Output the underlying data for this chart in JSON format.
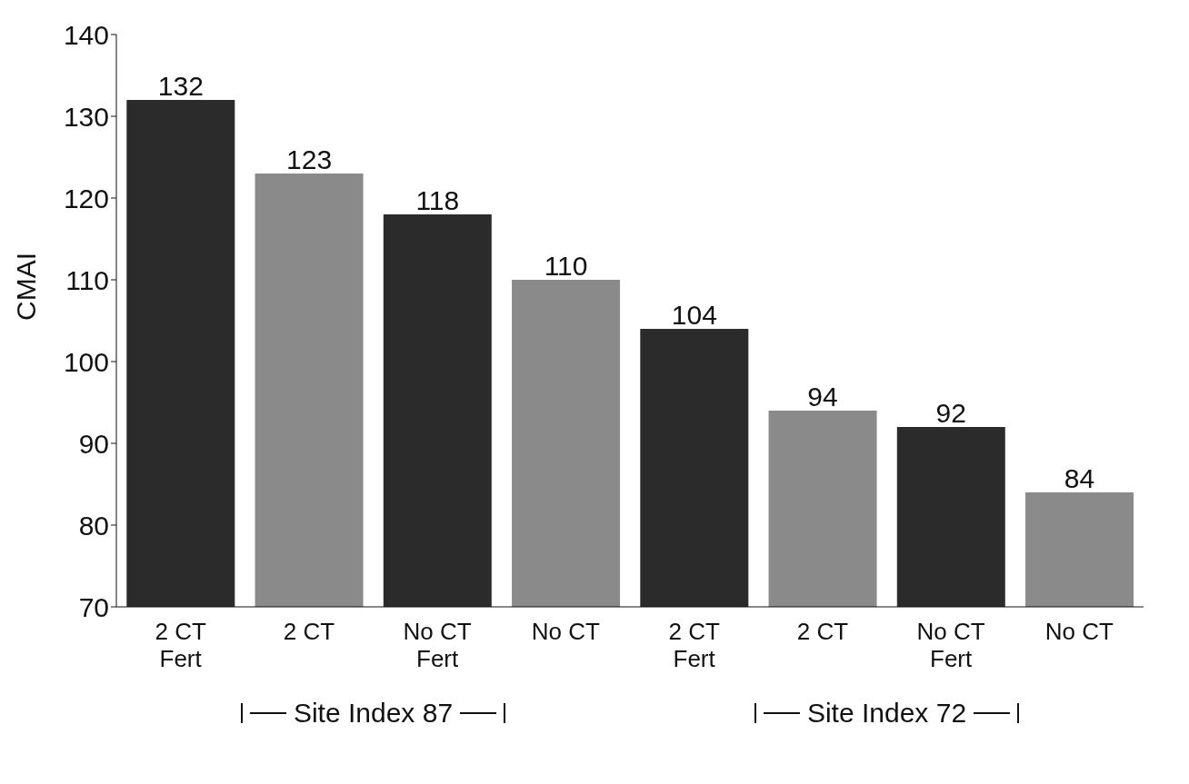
{
  "chart_data": {
    "type": "bar",
    "ylabel": "CMAI",
    "categories": [
      "2 CT\nFert",
      "2 CT",
      "No CT\nFert",
      "No CT",
      "2 CT\nFert",
      "2 CT",
      "No CT\nFert",
      "No CT"
    ],
    "values": [
      132,
      123,
      118,
      110,
      104,
      94,
      92,
      84
    ],
    "colors": [
      "#2b2b2b",
      "#8a8a8a",
      "#2b2b2b",
      "#8a8a8a",
      "#2b2b2b",
      "#8a8a8a",
      "#2b2b2b",
      "#8a8a8a"
    ],
    "ylim": [
      70,
      140
    ],
    "yticks": [
      70,
      80,
      90,
      100,
      110,
      120,
      130,
      140
    ],
    "data_labels": true,
    "grid": false,
    "legend": false,
    "annotations": [
      "Site Index 87",
      "Site Index 72"
    ]
  }
}
